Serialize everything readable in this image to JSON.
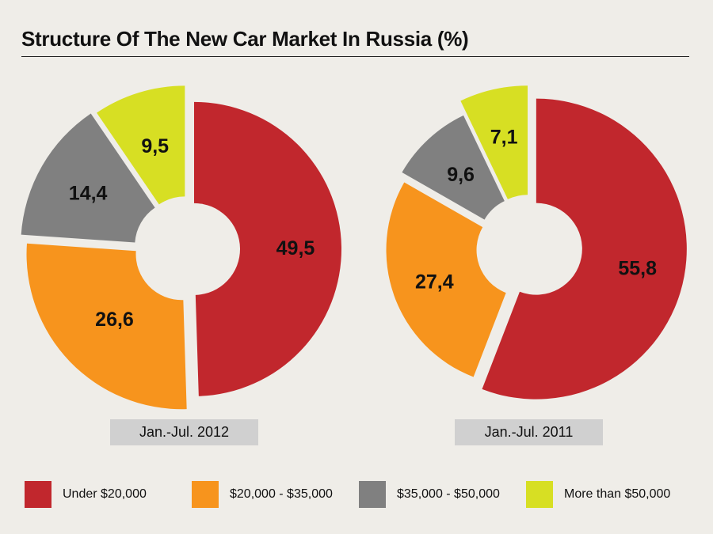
{
  "chart_data": {
    "type": "pie",
    "title": "Structure Of The New Car Market In Russia (%)",
    "categories": [
      "Under $20,000",
      "$20,000 - $35,000",
      "$35,000 - $50,000",
      "More than $50,000"
    ],
    "colors": [
      "#c1272d",
      "#f7941d",
      "#808080",
      "#d7df23"
    ],
    "legend_position": "bottom",
    "style": "exploded donut",
    "charts": [
      {
        "label": "Jan.-Jul. 2012",
        "values": [
          49.5,
          26.6,
          14.4,
          9.5
        ],
        "value_labels": [
          "49,5",
          "26,6",
          "14,4",
          "9,5"
        ]
      },
      {
        "label": "Jan.-Jul. 2011",
        "values": [
          55.8,
          27.4,
          9.6,
          7.1
        ],
        "value_labels": [
          "55,8",
          "27,4",
          "9,6",
          "7,1"
        ]
      }
    ]
  }
}
